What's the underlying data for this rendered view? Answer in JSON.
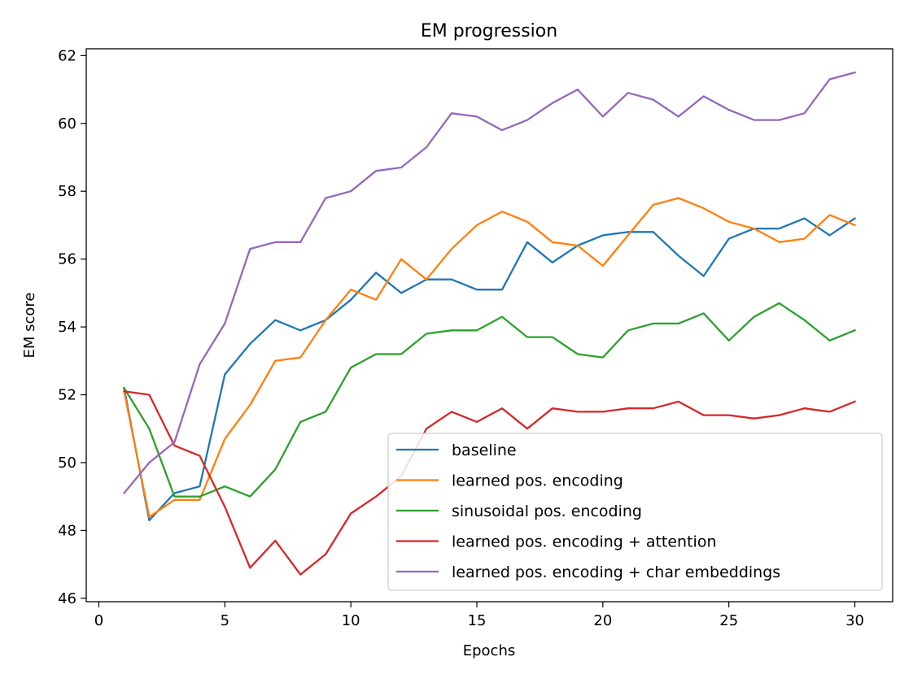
{
  "chart_data": {
    "type": "line",
    "title": "EM progression",
    "xlabel": "Epochs",
    "ylabel": "EM score",
    "xlim": [
      -0.5,
      31.5
    ],
    "ylim": [
      45.9,
      62.2
    ],
    "xticks": [
      0,
      5,
      10,
      15,
      20,
      25,
      30
    ],
    "yticks": [
      46,
      48,
      50,
      52,
      54,
      56,
      58,
      60,
      62
    ],
    "legend_position": "lower-right",
    "grid": false,
    "x": [
      1,
      2,
      3,
      4,
      5,
      6,
      7,
      8,
      9,
      10,
      11,
      12,
      13,
      14,
      15,
      16,
      17,
      18,
      19,
      20,
      21,
      22,
      23,
      24,
      25,
      26,
      27,
      28,
      29,
      30
    ],
    "series": [
      {
        "name": "baseline",
        "color": "#1f77b4",
        "values": [
          52.2,
          48.3,
          49.1,
          49.3,
          52.6,
          53.5,
          54.2,
          53.9,
          54.2,
          54.8,
          55.6,
          55.0,
          55.4,
          55.4,
          55.1,
          55.1,
          56.5,
          55.9,
          56.4,
          56.7,
          56.8,
          56.8,
          56.1,
          55.5,
          56.6,
          56.9,
          56.9,
          57.2,
          56.7,
          57.2
        ]
      },
      {
        "name": "learned pos. encoding",
        "color": "#ff7f0e",
        "values": [
          52.1,
          48.4,
          48.9,
          48.9,
          50.7,
          51.7,
          53.0,
          53.1,
          54.2,
          55.1,
          54.8,
          56.0,
          55.4,
          56.3,
          57.0,
          57.4,
          57.1,
          56.5,
          56.4,
          55.8,
          56.7,
          57.6,
          57.8,
          57.5,
          57.1,
          56.9,
          56.5,
          56.6,
          57.3,
          57.0
        ]
      },
      {
        "name": "sinusoidal pos. encoding",
        "color": "#2ca02c",
        "values": [
          52.2,
          51.0,
          49.0,
          49.0,
          49.3,
          49.0,
          49.8,
          51.2,
          51.5,
          52.8,
          53.2,
          53.2,
          53.8,
          53.9,
          53.9,
          54.3,
          53.7,
          53.7,
          53.2,
          53.1,
          53.9,
          54.1,
          54.1,
          54.4,
          53.6,
          54.3,
          54.7,
          54.2,
          53.6,
          53.9
        ]
      },
      {
        "name": "learned pos. encoding + attention",
        "color": "#d62728",
        "values": [
          52.1,
          52.0,
          50.5,
          50.2,
          48.7,
          46.9,
          47.7,
          46.7,
          47.3,
          48.5,
          49.0,
          49.6,
          51.0,
          51.5,
          51.2,
          51.6,
          51.0,
          51.6,
          51.5,
          51.5,
          51.6,
          51.6,
          51.8,
          51.4,
          51.4,
          51.3,
          51.4,
          51.6,
          51.5,
          51.8
        ]
      },
      {
        "name": "learned pos. encoding + char embeddings",
        "color": "#9467bd",
        "values": [
          49.1,
          50.0,
          50.6,
          52.9,
          54.1,
          56.3,
          56.5,
          56.5,
          57.8,
          58.0,
          58.6,
          58.7,
          59.3,
          60.3,
          60.2,
          59.8,
          60.1,
          60.6,
          61.0,
          60.2,
          60.9,
          60.7,
          60.2,
          60.8,
          60.4,
          60.1,
          60.1,
          60.3,
          61.3,
          61.5
        ]
      }
    ]
  }
}
